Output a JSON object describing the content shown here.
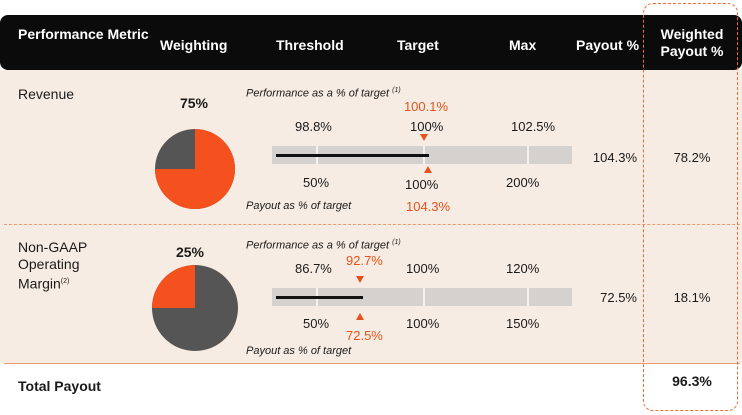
{
  "colors": {
    "header_bg": "#0b0b0b",
    "band_bg": "#f7ece3",
    "accent": "#e5531a",
    "pie_gray": "#555555",
    "bar_gray": "#d4d1ce"
  },
  "header": {
    "metric": "Performance Metric",
    "weighting": "Weighting",
    "threshold": "Threshold",
    "target": "Target",
    "max": "Max",
    "payout": "Payout %",
    "weighted_payout": "Weighted Payout %"
  },
  "rows": [
    {
      "metric": "Revenue",
      "weighting": "75%",
      "weighting_fraction": 0.75,
      "perf_label": "Performance as a % of target",
      "perf_note": "(1)",
      "actual_perf": "100.1%",
      "perf_threshold": "98.8%",
      "perf_target": "100%",
      "perf_max": "102.5%",
      "payout_threshold": "50%",
      "payout_target": "100%",
      "payout_max": "200%",
      "payout_label": "Payout as % of target",
      "actual_payout": "104.3%",
      "fill_fraction": 0.51,
      "payout_pct": "104.3%",
      "weighted_payout": "78.2%"
    },
    {
      "metric": "Non-GAAP Operating Margin",
      "metric_note": "(2)",
      "weighting": "25%",
      "weighting_fraction": 0.25,
      "perf_label": "Performance as a % of target",
      "perf_note": "(1)",
      "actual_perf": "92.7%",
      "perf_threshold": "86.7%",
      "perf_target": "100%",
      "perf_max": "120%",
      "payout_threshold": "50%",
      "payout_target": "100%",
      "payout_max": "150%",
      "payout_label": "Payout as % of target",
      "actual_payout": "72.5%",
      "fill_fraction": 0.29,
      "payout_pct": "72.5%",
      "weighted_payout": "18.1%"
    }
  ],
  "total": {
    "label": "Total Payout",
    "value": "96.3%"
  }
}
